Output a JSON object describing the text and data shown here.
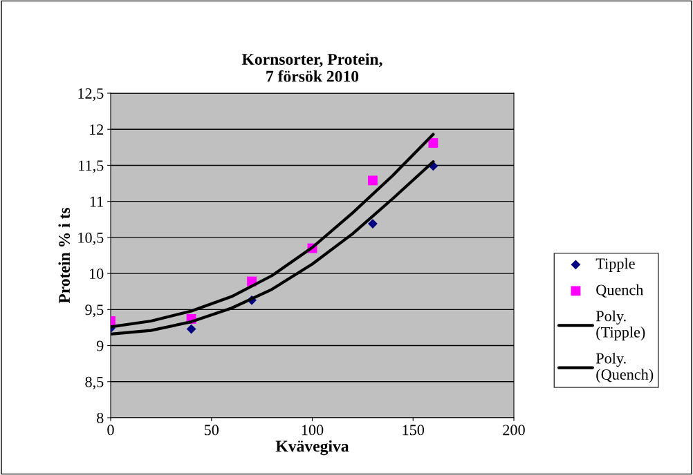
{
  "chart_data": {
    "type": "scatter",
    "title": "Kornsorter, Protein,\n7 försök 2010",
    "xlabel": "Kvävegiva",
    "ylabel": "Protein % i ts",
    "x": [
      0,
      40,
      70,
      100,
      130,
      160
    ],
    "series": [
      {
        "name": "Tipple",
        "color": "#000080",
        "marker": "diamond",
        "values": [
          9.24,
          9.23,
          9.63,
          null,
          10.69,
          11.49
        ]
      },
      {
        "name": "Quench",
        "color": "#ff00ff",
        "marker": "square",
        "values": [
          9.34,
          9.37,
          9.89,
          10.35,
          11.29,
          11.81
        ]
      },
      {
        "name": "Poly.\n(Tipple)",
        "type": "line",
        "color": "#000000",
        "marker": "none",
        "x": [
          0,
          20,
          40,
          60,
          80,
          100,
          120,
          140,
          160
        ],
        "values": [
          9.16,
          9.21,
          9.33,
          9.52,
          9.78,
          10.13,
          10.55,
          11.04,
          11.55
        ]
      },
      {
        "name": "Poly.\n(Quench)",
        "type": "line",
        "color": "#000000",
        "marker": "none",
        "x": [
          0,
          20,
          40,
          60,
          80,
          100,
          120,
          140,
          160
        ],
        "values": [
          9.26,
          9.34,
          9.48,
          9.68,
          9.97,
          10.36,
          10.84,
          11.36,
          11.93
        ]
      }
    ],
    "xlim": [
      0,
      200
    ],
    "xticks": [
      0,
      50,
      100,
      150,
      200
    ],
    "ylim": [
      8,
      12.5
    ],
    "yticks": [
      {
        "value": 8,
        "label": "8"
      },
      {
        "value": 8.5,
        "label": "8,5"
      },
      {
        "value": 9,
        "label": "9"
      },
      {
        "value": 9.5,
        "label": "9,5"
      },
      {
        "value": 10,
        "label": "10"
      },
      {
        "value": 10.5,
        "label": "10,5"
      },
      {
        "value": 11,
        "label": "11"
      },
      {
        "value": 11.5,
        "label": "11,5"
      },
      {
        "value": 12,
        "label": "12"
      },
      {
        "value": 12.5,
        "label": "12,5"
      }
    ],
    "grid": "y",
    "legend": "right"
  }
}
